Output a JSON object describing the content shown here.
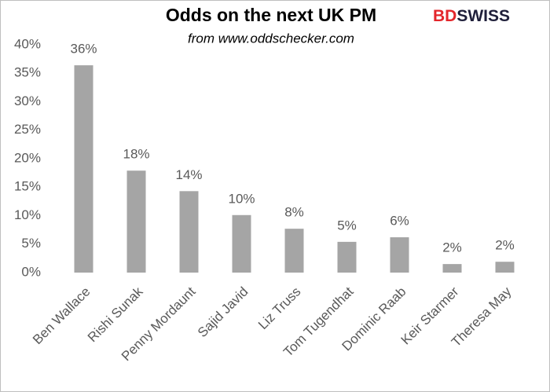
{
  "chart_data": {
    "type": "bar",
    "title": "Odds on the next UK PM",
    "subtitle": "from www.oddschecker.com",
    "logo": [
      "BD",
      "SWISS"
    ],
    "categories": [
      "Ben Wallace",
      "Rishi Sunak",
      "Penny Mordaunt",
      "Sajid Javid",
      "Liz Truss",
      "Tom Tugendhat",
      "Dominic Raab",
      "Keir Starmer",
      "Theresa May"
    ],
    "values": [
      36.4,
      17.9,
      14.3,
      10.1,
      7.7,
      5.4,
      6.2,
      1.5,
      1.9
    ],
    "value_labels": [
      "36%",
      "18%",
      "14%",
      "10%",
      "8%",
      "5%",
      "6%",
      "2%",
      "2%"
    ],
    "color": "#a5a5a5",
    "ylim": [
      0,
      40
    ],
    "yticks": [
      {
        "value": 0,
        "label": "0%"
      },
      {
        "value": 5,
        "label": "5%"
      },
      {
        "value": 10,
        "label": "10%"
      },
      {
        "value": 15,
        "label": "15%"
      },
      {
        "value": 20,
        "label": "20%"
      },
      {
        "value": 25,
        "label": "25%"
      },
      {
        "value": 30,
        "label": "30%"
      },
      {
        "value": 35,
        "label": "35%"
      },
      {
        "value": 40,
        "label": "40%"
      }
    ],
    "grid": false
  }
}
